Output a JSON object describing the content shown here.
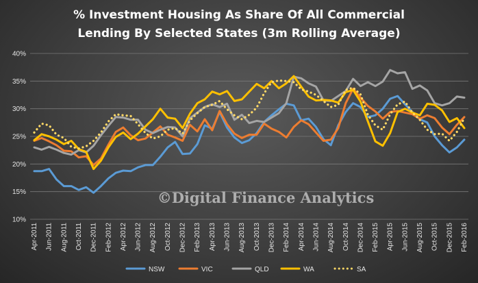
{
  "chart_data": {
    "type": "line",
    "title_lines": [
      "% Investment Housing  As Share Of All Commercial",
      "Lending  By Selected States  (3m Rolling Average)"
    ],
    "watermark": "©Digital Finance Analytics",
    "ylim": [
      10,
      40
    ],
    "y_ticks": [
      "10%",
      "15%",
      "20%",
      "25%",
      "30%",
      "35%",
      "40%"
    ],
    "x_tick_labels": [
      "Apr-2011",
      "Jun-2011",
      "Aug-2011",
      "Oct-2011",
      "Dec-2011",
      "Feb-2012",
      "Apr-2012",
      "Jun-2012",
      "Aug-2012",
      "Oct-2012",
      "Dec-2012",
      "Feb-2013",
      "Apr-2013",
      "Jun-2013",
      "Aug-2013",
      "Oct-2013",
      "Dec-2013",
      "Feb-2014",
      "Apr-2014",
      "Jun-2014",
      "Aug-2014",
      "Oct-2014",
      "Dec-2014",
      "Feb-2015",
      "Apr-2015",
      "Jun-2015",
      "Aug-2015",
      "Oct-2015",
      "Dec-2015",
      "Feb-2016"
    ],
    "x": [
      "Apr-2011",
      "May-2011",
      "Jun-2011",
      "Jul-2011",
      "Aug-2011",
      "Sep-2011",
      "Oct-2011",
      "Nov-2011",
      "Dec-2011",
      "Jan-2012",
      "Feb-2012",
      "Mar-2012",
      "Apr-2012",
      "May-2012",
      "Jun-2012",
      "Jul-2012",
      "Aug-2012",
      "Sep-2012",
      "Oct-2012",
      "Nov-2012",
      "Dec-2012",
      "Jan-2013",
      "Feb-2013",
      "Mar-2013",
      "Apr-2013",
      "May-2013",
      "Jun-2013",
      "Jul-2013",
      "Aug-2013",
      "Sep-2013",
      "Oct-2013",
      "Nov-2013",
      "Dec-2013",
      "Jan-2014",
      "Feb-2014",
      "Mar-2014",
      "Apr-2014",
      "May-2014",
      "Jun-2014",
      "Jul-2014",
      "Aug-2014",
      "Sep-2014",
      "Oct-2014",
      "Nov-2014",
      "Dec-2014",
      "Jan-2015",
      "Feb-2015",
      "Mar-2015",
      "Apr-2015",
      "May-2015",
      "Jun-2015",
      "Jul-2015",
      "Aug-2015",
      "Sep-2015",
      "Oct-2015",
      "Nov-2015",
      "Dec-2015",
      "Jan-2016",
      "Feb-2016"
    ],
    "series": [
      {
        "name": "NSW",
        "color": "#5b9bd5",
        "dash": "solid",
        "values": [
          18.7,
          18.7,
          19.1,
          17.2,
          16.0,
          16.0,
          15.3,
          15.8,
          14.8,
          16.0,
          17.4,
          18.4,
          18.8,
          18.7,
          19.4,
          19.8,
          19.8,
          21.3,
          23.0,
          24.0,
          21.8,
          21.9,
          23.6,
          27.0,
          26.4,
          29.4,
          26.6,
          24.8,
          23.8,
          24.3,
          25.6,
          27.6,
          28.8,
          29.9,
          30.9,
          30.6,
          27.9,
          28.2,
          26.7,
          24.5,
          23.4,
          27.0,
          29.4,
          31.0,
          30.3,
          28.5,
          28.8,
          30.0,
          31.8,
          32.3,
          30.8,
          29.4,
          28.1,
          27.5,
          25.0,
          23.4,
          22.1,
          23.0,
          24.4
        ]
      },
      {
        "name": "VIC",
        "color": "#ed7d31",
        "dash": "solid",
        "values": [
          24.2,
          24.7,
          24.1,
          23.4,
          22.4,
          22.3,
          21.2,
          21.4,
          19.8,
          21.0,
          23.5,
          25.8,
          26.6,
          25.2,
          24.3,
          24.6,
          25.7,
          26.8,
          25.3,
          24.8,
          24.2,
          27.1,
          25.9,
          28.1,
          26.1,
          29.6,
          27.2,
          25.5,
          24.7,
          25.3,
          25.3,
          27.3,
          26.4,
          25.8,
          24.8,
          26.7,
          27.9,
          27.2,
          25.7,
          24.2,
          24.4,
          26.5,
          31.0,
          33.6,
          32.0,
          30.5,
          29.5,
          28.2,
          29.4,
          29.6,
          29.3,
          29.0,
          28.2,
          28.8,
          28.3,
          26.6,
          25.4,
          27.1,
          28.5
        ]
      },
      {
        "name": "QLD",
        "color": "#a5a5a5",
        "dash": "solid",
        "values": [
          23.0,
          22.6,
          23.1,
          22.6,
          22.0,
          21.7,
          22.5,
          22.1,
          23.3,
          25.2,
          26.9,
          28.5,
          28.4,
          28.0,
          28.0,
          26.2,
          25.6,
          26.2,
          26.7,
          26.6,
          25.0,
          28.3,
          29.3,
          30.3,
          30.8,
          30.3,
          30.9,
          28.0,
          28.9,
          27.4,
          27.8,
          27.6,
          28.4,
          29.2,
          31.0,
          35.8,
          35.5,
          34.6,
          34.0,
          31.5,
          31.4,
          32.3,
          33.2,
          35.4,
          34.1,
          34.8,
          34.1,
          34.9,
          37.0,
          36.4,
          36.6,
          33.6,
          34.2,
          33.3,
          31.0,
          30.6,
          31.0,
          32.2,
          32.0
        ]
      },
      {
        "name": "WA",
        "color": "#ffc000",
        "dash": "solid",
        "values": [
          24.3,
          25.4,
          25.0,
          24.4,
          23.6,
          24.2,
          22.7,
          22.2,
          19.1,
          20.6,
          23.0,
          24.9,
          25.7,
          24.5,
          25.5,
          26.8,
          28.1,
          30.0,
          28.4,
          28.2,
          26.5,
          29.1,
          31.0,
          31.7,
          33.1,
          32.6,
          33.2,
          31.4,
          31.7,
          33.1,
          34.5,
          33.7,
          35.0,
          33.7,
          34.6,
          35.9,
          34.0,
          32.2,
          31.5,
          31.6,
          31.5,
          31.1,
          33.0,
          33.4,
          31.3,
          27.7,
          24.1,
          23.3,
          25.6,
          29.4,
          30.0,
          29.3,
          28.8,
          30.9,
          30.7,
          29.7,
          27.6,
          28.3,
          26.5
        ]
      },
      {
        "name": "SA",
        "color": "#ffd966",
        "dash": "dotted",
        "values": [
          25.7,
          27.3,
          27.0,
          25.3,
          24.7,
          23.1,
          22.8,
          23.2,
          24.2,
          25.7,
          27.7,
          29.0,
          28.8,
          28.7,
          27.2,
          25.6,
          24.6,
          25.0,
          26.2,
          26.5,
          25.5,
          27.9,
          29.2,
          30.3,
          30.7,
          31.4,
          29.9,
          28.8,
          28.1,
          28.9,
          30.2,
          32.8,
          34.8,
          35.1,
          35.0,
          34.8,
          33.5,
          33.1,
          32.5,
          31.4,
          30.3,
          30.7,
          33.4,
          33.8,
          32.6,
          28.9,
          27.0,
          26.2,
          29.0,
          30.8,
          31.3,
          29.3,
          28.0,
          26.2,
          25.4,
          25.5,
          24.2,
          25.8,
          28.3
        ]
      }
    ]
  }
}
